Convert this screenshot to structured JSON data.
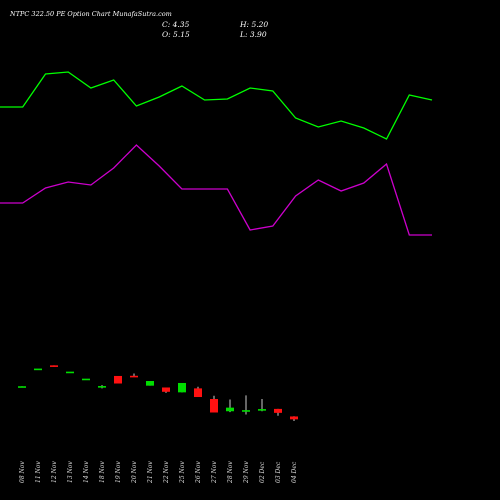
{
  "header": {
    "title": "NTPC 322.50  PE Option  Chart MunafaSutra.com",
    "close": "C: 4.35",
    "high": "H: 5.20",
    "open": "O: 5.15",
    "low": "L: 3.90"
  },
  "colors": {
    "background": "#000000",
    "green_line": "#00ff00",
    "magenta_line": "#cc00cc",
    "up_candle": "#00dd00",
    "down_candle": "#ff1111",
    "wick": "#ffffff"
  },
  "chart_data": {
    "type": "candlestick",
    "categories": [
      "08 Nov",
      "11 Nov",
      "12 Nov",
      "13 Nov",
      "14 Nov",
      "18 Nov",
      "19 Nov",
      "20 Nov",
      "21 Nov",
      "22 Nov",
      "25 Nov",
      "26 Nov",
      "27 Nov",
      "28 Nov",
      "29 Nov",
      "02 Dec",
      "03 Dec",
      "04 Dec"
    ],
    "candles": [
      {
        "open": 13.3,
        "close": 13.55,
        "high": 13.55,
        "low": 13.3
      },
      {
        "open": 18.45,
        "close": 18.45,
        "high": 18.45,
        "low": 18.45
      },
      {
        "open": 19.35,
        "close": 18.95,
        "high": 19.35,
        "low": 18.95
      },
      {
        "open": 17.6,
        "close": 17.6,
        "high": 17.6,
        "low": 17.6
      },
      {
        "open": 15.65,
        "close": 15.65,
        "high": 15.65,
        "low": 15.65
      },
      {
        "open": 13.45,
        "close": 13.6,
        "high": 13.85,
        "low": 12.95
      },
      {
        "open": 16.4,
        "close": 14.3,
        "high": 16.4,
        "low": 14.3
      },
      {
        "open": 16.45,
        "close": 16.15,
        "high": 17.1,
        "low": 16.15
      },
      {
        "open": 13.7,
        "close": 15.0,
        "high": 15.0,
        "low": 13.7
      },
      {
        "open": 13.2,
        "close": 12.0,
        "high": 13.2,
        "low": 11.7
      },
      {
        "open": 11.85,
        "close": 14.45,
        "high": 14.45,
        "low": 11.85
      },
      {
        "open": 12.95,
        "close": 10.55,
        "high": 13.4,
        "low": 10.55
      },
      {
        "open": 10.0,
        "close": 6.25,
        "high": 10.9,
        "low": 6.25
      },
      {
        "open": 6.6,
        "close": 7.6,
        "high": 9.85,
        "low": 6.35
      },
      {
        "open": 6.6,
        "close": 6.9,
        "high": 11.0,
        "low": 5.7
      },
      {
        "open": 7.0,
        "close": 7.2,
        "high": 10.0,
        "low": 6.6
      },
      {
        "open": 7.25,
        "close": 6.15,
        "high": 7.25,
        "low": 5.35
      },
      {
        "open": 5.15,
        "close": 4.35,
        "high": 5.2,
        "low": 3.9
      }
    ],
    "ylim": [
      0,
      50
    ],
    "overlay_lines": [
      {
        "color": "#00ff00",
        "values": [
          107,
          107,
          74,
          72,
          88,
          80,
          106,
          97,
          86,
          100,
          99,
          88,
          91,
          118,
          127,
          121,
          128,
          139,
          95,
          100
        ]
      },
      {
        "color": "#cc00cc",
        "values": [
          203,
          203,
          188,
          182,
          185,
          168,
          145,
          166,
          189,
          189,
          189,
          230,
          226,
          196,
          180,
          191,
          183,
          164,
          235,
          235
        ]
      }
    ]
  }
}
